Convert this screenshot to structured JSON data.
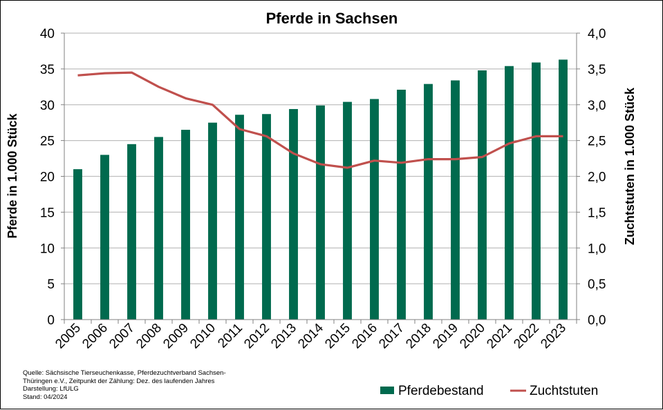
{
  "colors": {
    "bar": "#006a4e",
    "line": "#c0504d",
    "grid": "#bfbfbf",
    "axis": "#808080"
  },
  "chart_data": {
    "type": "bar",
    "title": "Pferde in Sachsen",
    "ylabel": "Pferde in 1.000 Stück",
    "y2label": "Zuchtstuten in 1.000 Stück",
    "ylim": [
      0,
      40
    ],
    "y2lim": [
      0,
      4
    ],
    "grid": true,
    "legend_position": "bottom-right",
    "y_ticks": [
      "0",
      "5",
      "10",
      "15",
      "20",
      "25",
      "30",
      "35",
      "40"
    ],
    "y2_ticks": [
      "0,0",
      "0,5",
      "1,0",
      "1,5",
      "2,0",
      "2,5",
      "3,0",
      "3,5",
      "4,0"
    ],
    "categories": [
      "2005",
      "2006",
      "2007",
      "2008",
      "2009",
      "2010",
      "2011",
      "2012",
      "2013",
      "2014",
      "2015",
      "2016",
      "2017",
      "2018",
      "2019",
      "2020",
      "2021",
      "2022",
      "2023"
    ],
    "series": [
      {
        "name": "Pferdebestand",
        "type": "bar",
        "axis": "left",
        "values": [
          21.0,
          23.0,
          24.5,
          25.5,
          26.5,
          27.5,
          28.6,
          28.7,
          29.4,
          29.9,
          30.4,
          30.8,
          32.1,
          32.9,
          33.4,
          34.8,
          35.4,
          35.9,
          36.3
        ]
      },
      {
        "name": "Zuchtstuten",
        "type": "line",
        "axis": "right",
        "values": [
          3.41,
          3.44,
          3.45,
          3.25,
          3.09,
          3.0,
          2.66,
          2.56,
          2.32,
          2.17,
          2.12,
          2.22,
          2.19,
          2.24,
          2.24,
          2.27,
          2.46,
          2.56,
          2.56
        ]
      }
    ]
  },
  "source_note": {
    "lines": [
      "Quelle: Sächsische Tierseuchenkasse, Pferdezuchtverband Sachsen-",
      "Thüringen e.V., Zeitpunkt der Zählung: Dez. des laufenden Jahres",
      "Darstellung: LfULG",
      "Stand: 04/2024"
    ]
  }
}
